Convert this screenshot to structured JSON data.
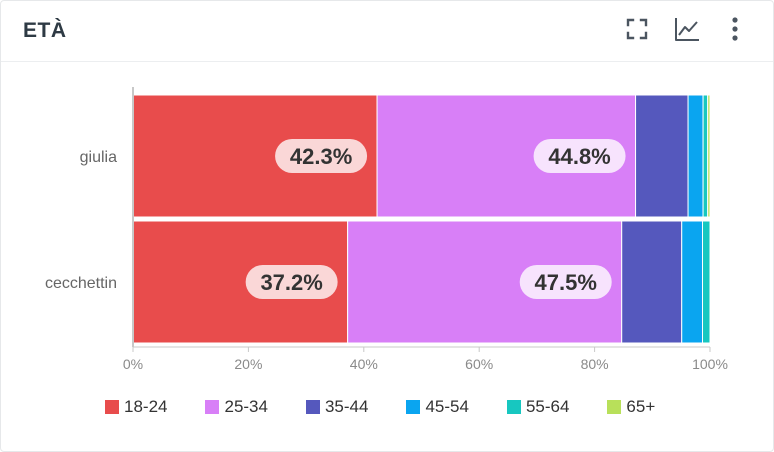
{
  "header": {
    "title": "ETÀ"
  },
  "icons": {
    "expand": "fullscreen-icon",
    "chart": "line-chart-icon",
    "menu": "more-vertical-icon"
  },
  "chart_data": {
    "type": "bar",
    "orientation": "horizontal",
    "stacked": "percent",
    "categories": [
      "giulia",
      "cecchettin"
    ],
    "series": [
      {
        "name": "18-24",
        "color": "#e84c4c",
        "values": [
          42.3,
          37.2
        ],
        "labels": [
          "42.3%",
          "37.2%"
        ]
      },
      {
        "name": "25-34",
        "color": "#d87ff7",
        "values": [
          44.8,
          47.5
        ],
        "labels": [
          "44.8%",
          "47.5%"
        ]
      },
      {
        "name": "35-44",
        "color": "#5558bd",
        "values": [
          9.1,
          10.4
        ],
        "labels": [
          null,
          null
        ]
      },
      {
        "name": "45-54",
        "color": "#0aa5f0",
        "values": [
          2.6,
          3.6
        ],
        "labels": [
          null,
          null
        ]
      },
      {
        "name": "55-64",
        "color": "#17c7c0",
        "values": [
          0.8,
          1.3
        ],
        "labels": [
          null,
          null
        ]
      },
      {
        "name": "65+",
        "color": "#b8e05a",
        "values": [
          0.4,
          0.0
        ],
        "labels": [
          null,
          null
        ]
      }
    ],
    "xlim": [
      0,
      100
    ],
    "xticks": [
      "0%",
      "20%",
      "40%",
      "60%",
      "80%",
      "100%"
    ],
    "legend_position": "bottom",
    "grid": false
  }
}
